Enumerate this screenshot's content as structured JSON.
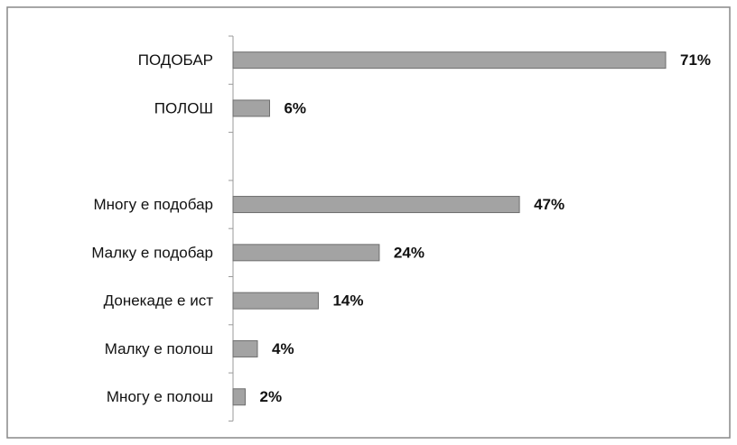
{
  "chart_data": {
    "type": "bar",
    "orientation": "horizontal",
    "categories": [
      "ПОДОБАР",
      "ПОЛОШ",
      null,
      "Многу е подобар",
      "Малку е подобар",
      "Донекаде е ист",
      "Малку е полош",
      "Многу е полош"
    ],
    "values": [
      71,
      6,
      null,
      47,
      24,
      14,
      4,
      2
    ],
    "value_labels": [
      "71%",
      "6%",
      null,
      "47%",
      "24%",
      "14%",
      "4%",
      "2%"
    ],
    "color": "#a3a3a3"
  }
}
